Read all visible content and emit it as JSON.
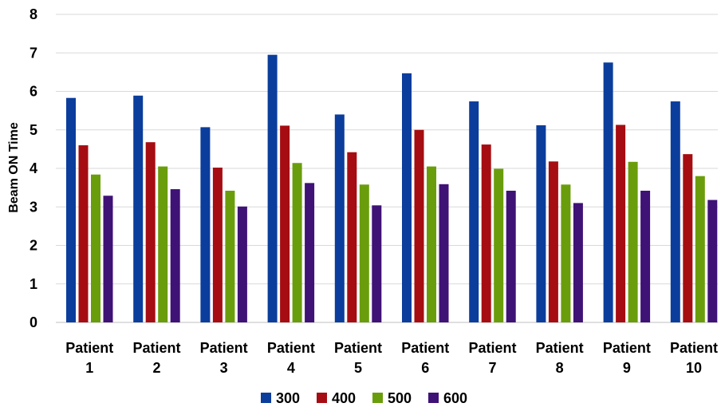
{
  "chart_data": {
    "type": "bar",
    "title": "",
    "xlabel": "",
    "ylabel": "Beam ON Time",
    "ylim": [
      0,
      8
    ],
    "yticks": [
      0,
      1,
      2,
      3,
      4,
      5,
      6,
      7,
      8
    ],
    "grid": true,
    "legend_position": "bottom",
    "categories": [
      [
        "Patient",
        "1"
      ],
      [
        "Patient",
        "2"
      ],
      [
        "Patient",
        "3"
      ],
      [
        "Patient",
        "4"
      ],
      [
        "Patient",
        "5"
      ],
      [
        "Patient",
        "6"
      ],
      [
        "Patient",
        "7"
      ],
      [
        "Patient",
        "8"
      ],
      [
        "Patient",
        "9"
      ],
      [
        "Patient",
        "10"
      ]
    ],
    "series": [
      {
        "name": "300",
        "color": "#0b3d9c",
        "values": [
          5.83,
          5.89,
          5.07,
          6.95,
          5.4,
          6.47,
          5.74,
          5.12,
          6.75,
          5.74
        ]
      },
      {
        "name": "400",
        "color": "#a50d12",
        "values": [
          4.6,
          4.68,
          4.02,
          5.11,
          4.42,
          5.0,
          4.62,
          4.18,
          5.13,
          4.37
        ]
      },
      {
        "name": "500",
        "color": "#6a9d0c",
        "values": [
          3.84,
          4.05,
          3.42,
          4.14,
          3.58,
          4.05,
          3.99,
          3.58,
          4.17,
          3.8
        ]
      },
      {
        "name": "600",
        "color": "#3f1276",
        "values": [
          3.29,
          3.46,
          3.01,
          3.62,
          3.04,
          3.59,
          3.42,
          3.1,
          3.42,
          3.18
        ]
      }
    ]
  }
}
